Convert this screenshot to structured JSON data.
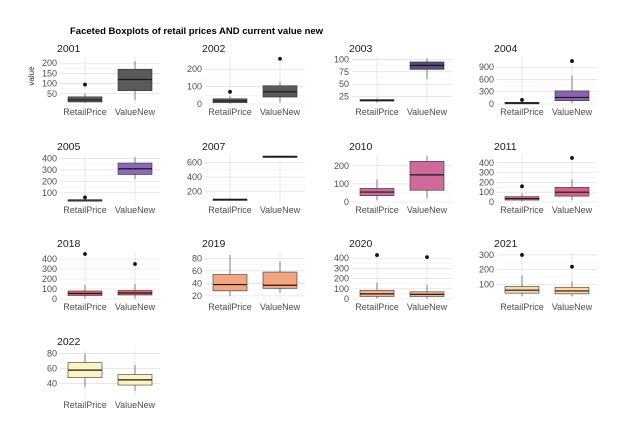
{
  "chart_data": {
    "type": "boxplot",
    "title": "Faceted Boxplots of retail prices AND current value new",
    "ylabel": "value",
    "categories": [
      "RetailPrice",
      "ValueNew"
    ],
    "facets": [
      {
        "label": "2001",
        "color": "#5a5a5a",
        "yticks": [
          50,
          100,
          150,
          200
        ],
        "ylim": [
          0,
          230
        ],
        "boxes": [
          {
            "whiskerLow": 5,
            "q1": 10,
            "median": 20,
            "q3": 35,
            "whiskerHigh": 50,
            "outliers": [
              95
            ]
          },
          {
            "whiskerLow": 20,
            "q1": 65,
            "median": 120,
            "q3": 170,
            "whiskerHigh": 210,
            "outliers": []
          }
        ]
      },
      {
        "label": "2002",
        "color": "#5a5a5a",
        "yticks": [
          0,
          100,
          200
        ],
        "ylim": [
          0,
          270
        ],
        "boxes": [
          {
            "whiskerLow": 2,
            "q1": 8,
            "median": 18,
            "q3": 30,
            "whiskerHigh": 45,
            "outliers": [
              70
            ]
          },
          {
            "whiskerLow": 10,
            "q1": 40,
            "median": 70,
            "q3": 105,
            "whiskerHigh": 130,
            "outliers": [
              260
            ]
          }
        ]
      },
      {
        "label": "2003",
        "color": "#5c4b7d",
        "yticks": [
          25,
          50,
          75,
          100
        ],
        "ylim": [
          10,
          105
        ],
        "boxes": [
          {
            "whiskerLow": 13,
            "q1": 16,
            "median": 17,
            "q3": 19,
            "whiskerHigh": 21,
            "outliers": []
          },
          {
            "whiskerLow": 60,
            "q1": 80,
            "median": 88,
            "q3": 95,
            "whiskerHigh": 102,
            "outliers": []
          }
        ]
      },
      {
        "label": "2004",
        "color": "#8a63b0",
        "yticks": [
          0,
          300,
          600,
          900
        ],
        "ylim": [
          0,
          1150
        ],
        "boxes": [
          {
            "whiskerLow": 5,
            "q1": 15,
            "median": 25,
            "q3": 40,
            "whiskerHigh": 60,
            "outliers": [
              100
            ]
          },
          {
            "whiskerLow": 20,
            "q1": 80,
            "median": 160,
            "q3": 320,
            "whiskerHigh": 700,
            "outliers": [
              1050
            ]
          }
        ]
      },
      {
        "label": "2005",
        "color": "#8b68b8",
        "yticks": [
          100,
          200,
          300,
          400
        ],
        "ylim": [
          20,
          430
        ],
        "boxes": [
          {
            "whiskerLow": 30,
            "q1": 35,
            "median": 37,
            "q3": 40,
            "whiskerHigh": 45,
            "outliers": [
              60
            ]
          },
          {
            "whiskerLow": 220,
            "q1": 260,
            "median": 310,
            "q3": 360,
            "whiskerHigh": 410,
            "outliers": []
          }
        ]
      },
      {
        "label": "2007",
        "color": "#a57bc4",
        "yticks": [
          200,
          400,
          600
        ],
        "ylim": [
          60,
          700
        ],
        "boxes": [
          {
            "whiskerLow": 80,
            "q1": 90,
            "median": 95,
            "q3": 100,
            "whiskerHigh": 110,
            "outliers": []
          },
          {
            "whiskerLow": 670,
            "q1": 675,
            "median": 680,
            "q3": 685,
            "whiskerHigh": 690,
            "outliers": []
          }
        ]
      },
      {
        "label": "2010",
        "color": "#cf6b9a",
        "yticks": [
          0,
          100,
          200
        ],
        "ylim": [
          0,
          260
        ],
        "boxes": [
          {
            "whiskerLow": 10,
            "q1": 35,
            "median": 55,
            "q3": 75,
            "whiskerHigh": 125,
            "outliers": []
          },
          {
            "whiskerLow": 20,
            "q1": 65,
            "median": 150,
            "q3": 225,
            "whiskerHigh": 255,
            "outliers": []
          }
        ]
      },
      {
        "label": "2011",
        "color": "#d5628a",
        "yticks": [
          0,
          100,
          200,
          300,
          400
        ],
        "ylim": [
          0,
          480
        ],
        "boxes": [
          {
            "whiskerLow": 5,
            "q1": 20,
            "median": 35,
            "q3": 55,
            "whiskerHigh": 90,
            "outliers": [
              160
            ]
          },
          {
            "whiskerLow": 20,
            "q1": 60,
            "median": 100,
            "q3": 150,
            "whiskerHigh": 230,
            "outliers": [
              450
            ]
          }
        ]
      },
      {
        "label": "2018",
        "color": "#e85e6c",
        "yticks": [
          0,
          100,
          200,
          300,
          400
        ],
        "ylim": [
          0,
          470
        ],
        "boxes": [
          {
            "whiskerLow": 5,
            "q1": 35,
            "median": 55,
            "q3": 80,
            "whiskerHigh": 140,
            "outliers": [
              450
            ]
          },
          {
            "whiskerLow": 5,
            "q1": 40,
            "median": 60,
            "q3": 85,
            "whiskerHigh": 150,
            "outliers": [
              350
            ]
          }
        ]
      },
      {
        "label": "2019",
        "color": "#f4a582",
        "yticks": [
          20,
          40,
          60,
          80
        ],
        "ylim": [
          15,
          90
        ],
        "boxes": [
          {
            "whiskerLow": 20,
            "q1": 28,
            "median": 38,
            "q3": 54,
            "whiskerHigh": 85,
            "outliers": []
          },
          {
            "whiskerLow": 25,
            "q1": 32,
            "median": 37,
            "q3": 58,
            "whiskerHigh": 75,
            "outliers": []
          }
        ]
      },
      {
        "label": "2020",
        "color": "#f6b48c",
        "yticks": [
          0,
          100,
          200,
          300,
          400
        ],
        "ylim": [
          0,
          460
        ],
        "boxes": [
          {
            "whiskerLow": 5,
            "q1": 25,
            "median": 50,
            "q3": 85,
            "whiskerHigh": 160,
            "outliers": [
              430
            ]
          },
          {
            "whiskerLow": 5,
            "q1": 25,
            "median": 45,
            "q3": 70,
            "whiskerHigh": 140,
            "outliers": [
              410
            ]
          }
        ]
      },
      {
        "label": "2021",
        "color": "#fbd9a6",
        "yticks": [
          100,
          200,
          300
        ],
        "ylim": [
          0,
          320
        ],
        "boxes": [
          {
            "whiskerLow": 20,
            "q1": 40,
            "median": 60,
            "q3": 85,
            "whiskerHigh": 160,
            "outliers": [
              300
            ]
          },
          {
            "whiskerLow": 20,
            "q1": 35,
            "median": 55,
            "q3": 80,
            "whiskerHigh": 120,
            "outliers": [
              220
            ]
          }
        ]
      },
      {
        "label": "2022",
        "color": "#fdf3c2",
        "yticks": [
          40,
          60,
          80
        ],
        "ylim": [
          22,
          85
        ],
        "boxes": [
          {
            "whiskerLow": 35,
            "q1": 48,
            "median": 58,
            "q3": 68,
            "whiskerHigh": 80,
            "outliers": []
          },
          {
            "whiskerLow": 30,
            "q1": 38,
            "median": 45,
            "q3": 52,
            "whiskerHigh": 65,
            "outliers": []
          }
        ]
      }
    ]
  }
}
